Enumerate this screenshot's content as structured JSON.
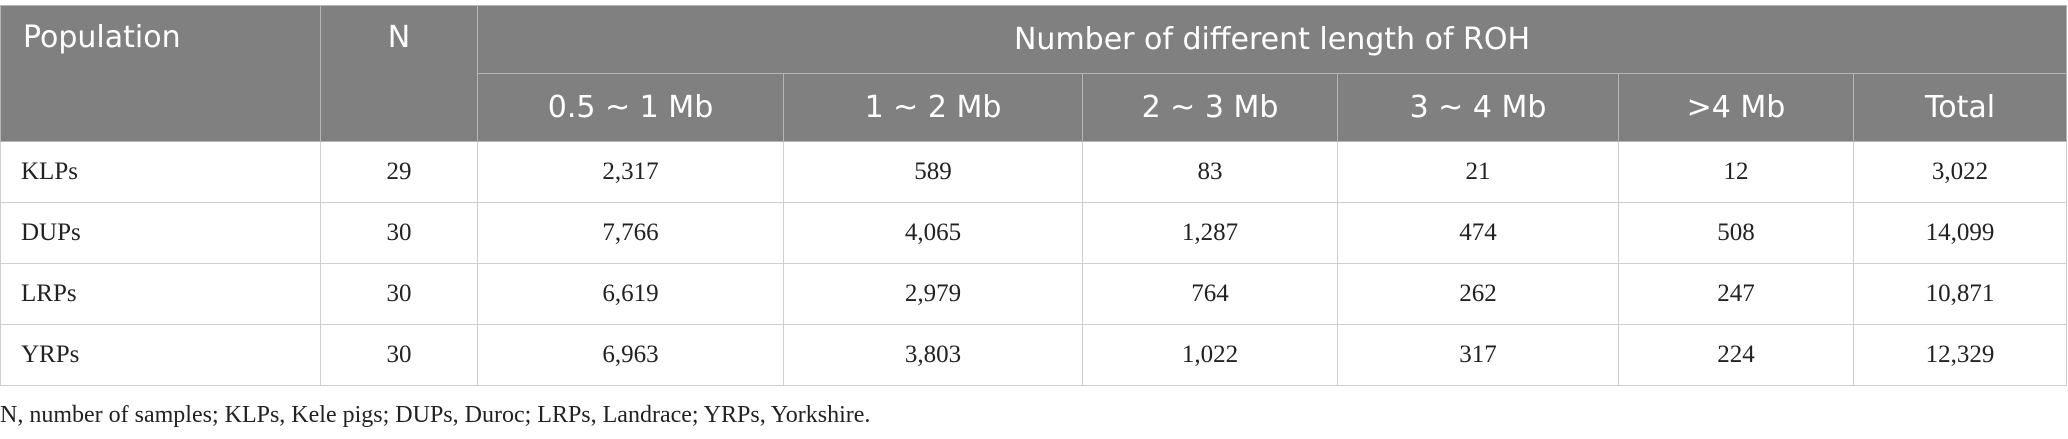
{
  "table": {
    "header": {
      "population": "Population",
      "n": "N",
      "group_title": "Number of different length of ROH",
      "subheaders": [
        "0.5 ~ 1 Mb",
        "1 ~ 2 Mb",
        "2 ~ 3 Mb",
        "3 ~ 4 Mb",
        ">4 Mb",
        "Total"
      ]
    },
    "rows": [
      [
        "KLPs",
        "29",
        "2,317",
        "589",
        "83",
        "21",
        "12",
        "3,022"
      ],
      [
        "DUPs",
        "30",
        "7,766",
        "4,065",
        "1,287",
        "474",
        "508",
        "14,099"
      ],
      [
        "LRPs",
        "30",
        "6,619",
        "2,979",
        "764",
        "262",
        "247",
        "10,871"
      ],
      [
        "YRPs",
        "30",
        "6,963",
        "3,803",
        "1,022",
        "317",
        "224",
        "12,329"
      ]
    ]
  },
  "footnote": "N, number of samples; KLPs, Kele pigs; DUPs, Duroc; LRPs, Landrace; YRPs, Yorkshire."
}
